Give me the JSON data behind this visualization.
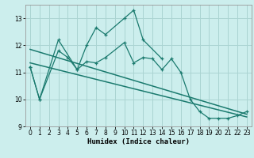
{
  "xlabel": "Humidex (Indice chaleur)",
  "bg_color": "#cceeed",
  "grid_color": "#aad4d2",
  "line_color": "#1a7a6e",
  "line1_x": [
    0,
    1,
    3,
    5,
    6,
    7,
    8,
    10,
    11,
    12,
    14
  ],
  "line1_y": [
    11.2,
    10.0,
    12.2,
    11.1,
    12.0,
    12.65,
    12.4,
    13.0,
    13.3,
    12.2,
    11.5
  ],
  "line2_x": [
    0,
    1,
    3,
    4,
    5,
    6,
    7,
    8,
    10,
    11,
    12,
    13,
    14,
    15,
    16,
    17,
    18,
    19,
    20,
    21,
    22,
    23
  ],
  "line2_y": [
    11.2,
    10.0,
    11.8,
    11.55,
    11.1,
    11.4,
    11.35,
    11.55,
    12.1,
    11.35,
    11.55,
    11.5,
    11.1,
    11.5,
    11.0,
    10.0,
    9.55,
    9.3,
    9.3,
    9.3,
    9.4,
    9.55
  ],
  "trend1_x": [
    0,
    23
  ],
  "trend1_y": [
    11.85,
    9.45
  ],
  "trend2_x": [
    0,
    23
  ],
  "trend2_y": [
    11.35,
    9.35
  ],
  "xlim": [
    -0.5,
    23.5
  ],
  "ylim": [
    9.0,
    13.5
  ],
  "yticks": [
    9,
    10,
    11,
    12,
    13
  ],
  "xticks": [
    0,
    1,
    2,
    3,
    4,
    5,
    6,
    7,
    8,
    9,
    10,
    11,
    12,
    13,
    14,
    15,
    16,
    17,
    18,
    19,
    20,
    21,
    22,
    23
  ]
}
